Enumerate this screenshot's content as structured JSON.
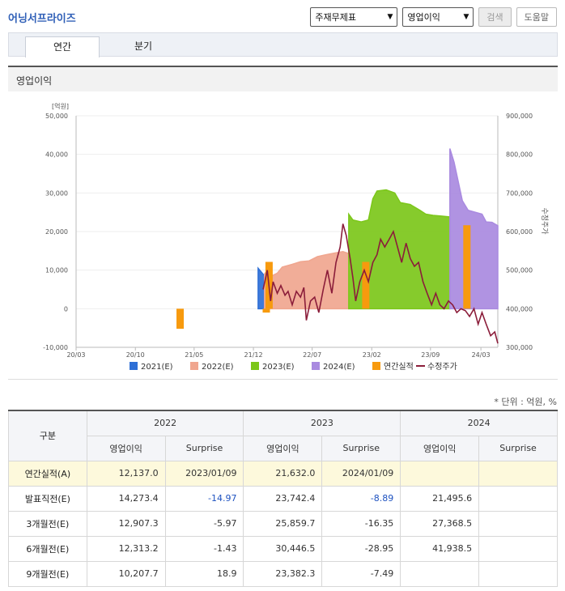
{
  "company": "어닝서프라이즈",
  "controls": {
    "select_report": "주재무제표",
    "select_item": "영업이익",
    "search_label": "검색",
    "help_label": "도움말"
  },
  "tabs": [
    "연간",
    "분기"
  ],
  "panel_title": "영업이익",
  "unit_note": "* 단위 : 억원, %",
  "colors": {
    "e2021": "#2e6fd6",
    "e2022": "#f0a68f",
    "e2023": "#7cc71a",
    "e2024": "#a98ae0",
    "actual": "#f79a0e",
    "price": "#8b1d3a"
  },
  "chart_data": {
    "type": "area",
    "left_axis_unit": "[억원]",
    "right_axis_label": "수정주가",
    "y_left_ticks": [
      "50,000",
      "40,000",
      "30,000",
      "20,000",
      "10,000",
      "0",
      "-10,000"
    ],
    "y_right_ticks": [
      "900,000",
      "800,000",
      "700,000",
      "600,000",
      "500,000",
      "400,000",
      "300,000"
    ],
    "ylim_left": [
      -10000,
      50000
    ],
    "ylim_right": [
      300000,
      900000
    ],
    "x_ticks": [
      "20/03",
      "20/10",
      "21/05",
      "21/12",
      "22/07",
      "23/02",
      "23/09",
      "24/03"
    ],
    "x_tick_dates": [
      "2020-03-01",
      "2020-10-01",
      "2021-05-01",
      "2021-12-01",
      "2022-07-01",
      "2023-02-01",
      "2023-09-01",
      "2024-03-01"
    ],
    "xlim_dates": [
      "2020-03-01",
      "2024-05-01"
    ],
    "legend": [
      "2021(E)",
      "2022(E)",
      "2023(E)",
      "2024(E)",
      "연간실적",
      "수정주가"
    ],
    "estimate_series": [
      {
        "name": "2021(E)",
        "points": [
          [
            "2021-12-18",
            10500
          ],
          [
            "2022-01-10",
            8500
          ]
        ]
      },
      {
        "name": "2022(E)",
        "points": [
          [
            "2022-01-10",
            9000
          ],
          [
            "2022-01-20",
            10000
          ],
          [
            "2022-02-05",
            8500
          ],
          [
            "2022-02-25",
            9200
          ],
          [
            "2022-03-15",
            10800
          ],
          [
            "2022-04-20",
            11500
          ],
          [
            "2022-05-20",
            12200
          ],
          [
            "2022-06-20",
            12400
          ],
          [
            "2022-07-20",
            13500
          ],
          [
            "2022-08-20",
            14000
          ],
          [
            "2022-09-25",
            14500
          ],
          [
            "2022-10-20",
            14800
          ],
          [
            "2022-11-10",
            14300
          ]
        ]
      },
      {
        "name": "2023(E)",
        "points": [
          [
            "2022-11-10",
            24500
          ],
          [
            "2022-11-25",
            23000
          ],
          [
            "2022-12-25",
            22500
          ],
          [
            "2023-01-20",
            23000
          ],
          [
            "2023-02-05",
            28500
          ],
          [
            "2023-02-20",
            30500
          ],
          [
            "2023-03-25",
            30800
          ],
          [
            "2023-04-25",
            30000
          ],
          [
            "2023-05-15",
            27500
          ],
          [
            "2023-06-20",
            27000
          ],
          [
            "2023-07-25",
            25500
          ],
          [
            "2023-08-15",
            24500
          ],
          [
            "2023-09-10",
            24200
          ],
          [
            "2023-10-10",
            24000
          ],
          [
            "2023-11-10",
            23800
          ]
        ]
      },
      {
        "name": "2024(E)",
        "points": [
          [
            "2023-11-10",
            41500
          ],
          [
            "2023-11-25",
            38000
          ],
          [
            "2023-12-10",
            33000
          ],
          [
            "2023-12-25",
            28000
          ],
          [
            "2024-01-15",
            25500
          ],
          [
            "2024-02-10",
            25000
          ],
          [
            "2024-03-05",
            24500
          ],
          [
            "2024-03-20",
            22500
          ],
          [
            "2024-04-10",
            22400
          ],
          [
            "2024-05-01",
            21500
          ]
        ]
      }
    ],
    "actual_bars": [
      {
        "date": "2021-03-10",
        "value": -5200
      },
      {
        "date": "2022-01-15",
        "value": -1000
      },
      {
        "date": "2022-01-25",
        "value": 12137
      },
      {
        "date": "2023-01-09",
        "value": 12137
      },
      {
        "date": "2024-01-09",
        "value": 21632
      }
    ],
    "price_series": {
      "name": "수정주가",
      "points": [
        [
          "2022-01-05",
          450000
        ],
        [
          "2022-01-20",
          500000
        ],
        [
          "2022-02-01",
          420000
        ],
        [
          "2022-02-10",
          470000
        ],
        [
          "2022-02-25",
          440000
        ],
        [
          "2022-03-10",
          460000
        ],
        [
          "2022-03-25",
          435000
        ],
        [
          "2022-04-05",
          445000
        ],
        [
          "2022-04-20",
          410000
        ],
        [
          "2022-05-05",
          445000
        ],
        [
          "2022-05-20",
          430000
        ],
        [
          "2022-06-01",
          455000
        ],
        [
          "2022-06-10",
          370000
        ],
        [
          "2022-06-25",
          420000
        ],
        [
          "2022-07-10",
          430000
        ],
        [
          "2022-07-25",
          390000
        ],
        [
          "2022-08-10",
          450000
        ],
        [
          "2022-08-25",
          500000
        ],
        [
          "2022-09-10",
          440000
        ],
        [
          "2022-09-25",
          520000
        ],
        [
          "2022-10-10",
          560000
        ],
        [
          "2022-10-20",
          620000
        ],
        [
          "2022-11-01",
          590000
        ],
        [
          "2022-11-15",
          530000
        ],
        [
          "2022-11-25",
          480000
        ],
        [
          "2022-12-05",
          420000
        ],
        [
          "2022-12-20",
          470000
        ],
        [
          "2023-01-05",
          500000
        ],
        [
          "2023-01-20",
          470000
        ],
        [
          "2023-02-05",
          520000
        ],
        [
          "2023-02-20",
          540000
        ],
        [
          "2023-03-05",
          580000
        ],
        [
          "2023-03-20",
          560000
        ],
        [
          "2023-04-05",
          580000
        ],
        [
          "2023-04-20",
          600000
        ],
        [
          "2023-05-05",
          560000
        ],
        [
          "2023-05-20",
          520000
        ],
        [
          "2023-06-05",
          570000
        ],
        [
          "2023-06-20",
          530000
        ],
        [
          "2023-07-05",
          510000
        ],
        [
          "2023-07-20",
          520000
        ],
        [
          "2023-08-05",
          470000
        ],
        [
          "2023-08-20",
          440000
        ],
        [
          "2023-09-05",
          410000
        ],
        [
          "2023-09-20",
          440000
        ],
        [
          "2023-10-05",
          410000
        ],
        [
          "2023-10-20",
          400000
        ],
        [
          "2023-11-05",
          420000
        ],
        [
          "2023-11-20",
          410000
        ],
        [
          "2023-12-05",
          390000
        ],
        [
          "2023-12-20",
          400000
        ],
        [
          "2024-01-05",
          395000
        ],
        [
          "2024-01-20",
          380000
        ],
        [
          "2024-02-05",
          400000
        ],
        [
          "2024-02-20",
          360000
        ],
        [
          "2024-03-05",
          390000
        ],
        [
          "2024-03-20",
          360000
        ],
        [
          "2024-04-05",
          330000
        ],
        [
          "2024-04-20",
          340000
        ],
        [
          "2024-05-01",
          310000
        ]
      ]
    }
  },
  "table": {
    "col_header": "구분",
    "years": [
      "2022",
      "2023",
      "2024"
    ],
    "sub_headers": [
      "영업이익",
      "Surprise",
      "영업이익",
      "Surprise",
      "영업이익",
      "Surprise"
    ],
    "rows": [
      {
        "label": "연간실적(A)",
        "cells": [
          "12,137.0",
          "2023/01/09",
          "21,632.0",
          "2024/01/09",
          "",
          ""
        ],
        "actual": true
      },
      {
        "label": "발표직전(E)",
        "cells": [
          "14,273.4",
          "-14.97",
          "23,742.4",
          "-8.89",
          "21,495.6",
          ""
        ],
        "blue": [
          1,
          3
        ]
      },
      {
        "label": "3개월전(E)",
        "cells": [
          "12,907.3",
          "-5.97",
          "25,859.7",
          "-16.35",
          "27,368.5",
          ""
        ]
      },
      {
        "label": "6개월전(E)",
        "cells": [
          "12,313.2",
          "-1.43",
          "30,446.5",
          "-28.95",
          "41,938.5",
          ""
        ]
      },
      {
        "label": "9개월전(E)",
        "cells": [
          "10,207.7",
          "18.9",
          "23,382.3",
          "-7.49",
          "",
          ""
        ]
      }
    ]
  }
}
